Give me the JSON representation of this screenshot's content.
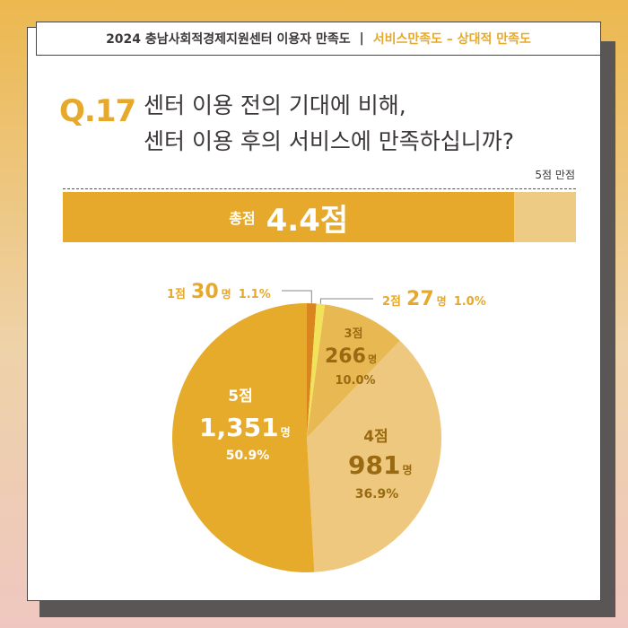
{
  "header": {
    "title": "2024 충남사회적경제지원센터 이용자 만족도",
    "separator": "|",
    "subtitle": "서비스만족도 – 상대적 만족도"
  },
  "question": {
    "number": "Q.17",
    "line1": "센터 이용 전의 기대에 비해,",
    "line2": "센터 이용 후의 서비스에 만족하십니까?"
  },
  "score": {
    "max_label": "5점 만점",
    "label": "총점",
    "value_label": "4.4점",
    "value": 4.4,
    "max": 5
  },
  "colors": {
    "accent": "#e6a92b",
    "brown": "#9a6a12",
    "score5": "#e6ab2b",
    "score4": "#edc87e",
    "score3": "#e8b853",
    "score2": "#f2e25a",
    "score1": "#d9861f"
  },
  "chart_data": {
    "type": "pie",
    "unit": "명",
    "slices": [
      {
        "label": "1점",
        "count": 30,
        "count_label": "30",
        "percent": 1.1,
        "percent_label": "1.1%"
      },
      {
        "label": "2점",
        "count": 27,
        "count_label": "27",
        "percent": 1.0,
        "percent_label": "1.0%"
      },
      {
        "label": "3점",
        "count": 266,
        "count_label": "266",
        "percent": 10.0,
        "percent_label": "10.0%"
      },
      {
        "label": "4점",
        "count": 981,
        "count_label": "981",
        "percent": 36.9,
        "percent_label": "36.9%"
      },
      {
        "label": "5점",
        "count": 1351,
        "count_label": "1,351",
        "percent": 50.9,
        "percent_label": "50.9%"
      }
    ]
  }
}
